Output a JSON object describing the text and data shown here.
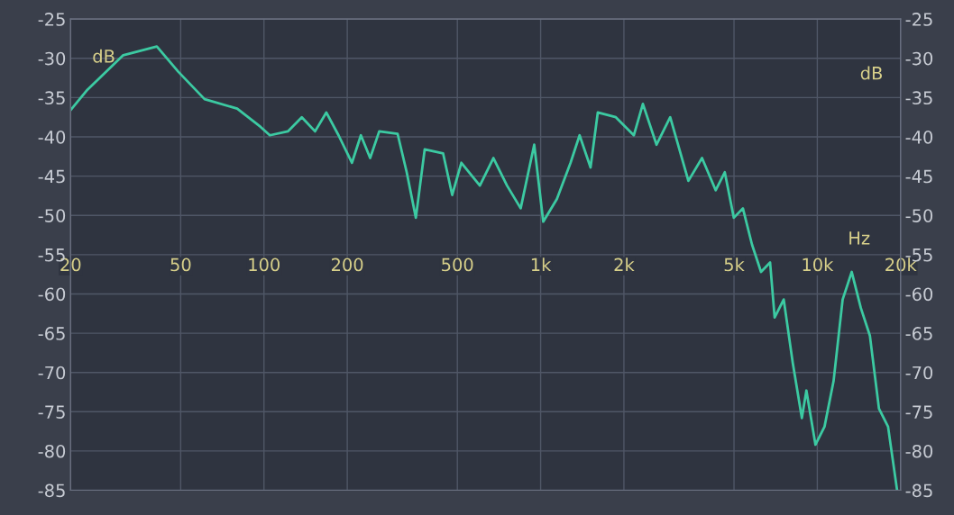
{
  "chart_data": {
    "type": "line",
    "xlabel": "Hz",
    "ylabel": "dB",
    "y2label": "dB",
    "log": "x",
    "grid": true,
    "marker": "none",
    "line_style": "solid",
    "xlim": [
      20,
      20000
    ],
    "xticks": [
      {
        "value": 20,
        "label": "20"
      },
      {
        "value": 50,
        "label": "50"
      },
      {
        "value": 100,
        "label": "100"
      },
      {
        "value": 200,
        "label": "200"
      },
      {
        "value": 500,
        "label": "500"
      },
      {
        "value": 1000,
        "label": "1k"
      },
      {
        "value": 2000,
        "label": "2k"
      },
      {
        "value": 5000,
        "label": "5k"
      },
      {
        "value": 10000,
        "label": "10k"
      },
      {
        "value": 20000,
        "label": "20k"
      }
    ],
    "ylim": [
      -85,
      -25
    ],
    "yticks": [
      -85,
      -80,
      -75,
      -70,
      -65,
      -60,
      -55,
      -50,
      -45,
      -40,
      -35,
      -30,
      -25
    ],
    "y2lim": [
      -85,
      -25
    ],
    "y2ticks": [
      -85,
      -80,
      -75,
      -70,
      -65,
      -60,
      -55,
      -50,
      -45,
      -40,
      -35,
      -30,
      -25
    ],
    "series": [
      {
        "color": "#3ccaa2",
        "x": [
          20,
          23,
          31,
          41,
          49,
          61,
          80,
          97,
          105,
          122,
          137,
          153,
          168,
          186,
          208,
          224,
          242,
          261,
          304,
          328,
          354,
          381,
          444,
          479,
          517,
          603,
          675,
          756,
          847,
          948,
          1022,
          1145,
          1283,
          1383,
          1515,
          1609,
          1870,
          2172,
          2342,
          2624,
          2940,
          3420,
          3831,
          4292,
          4630,
          4992,
          5384,
          5806,
          6261,
          6752,
          7012,
          7562,
          8155,
          8795,
          9133,
          9850,
          10620,
          11450,
          12350,
          13320,
          14370,
          15490,
          16710,
          18020,
          19430
        ],
        "values": [
          -36.6,
          -34,
          -29.6,
          -28.5,
          -31.7,
          -35.2,
          -36.4,
          -38.7,
          -39.8,
          -39.3,
          -37.5,
          -39.3,
          -36.9,
          -39.8,
          -43.3,
          -39.8,
          -42.7,
          -39.3,
          -39.6,
          -44.5,
          -50.3,
          -41.6,
          -42.1,
          -47.4,
          -43.3,
          -46.2,
          -42.7,
          -46.2,
          -49.1,
          -41,
          -50.8,
          -47.9,
          -43.3,
          -39.8,
          -43.9,
          -36.9,
          -37.5,
          -39.8,
          -35.8,
          -41,
          -37.5,
          -45.6,
          -42.7,
          -46.8,
          -44.5,
          -50.3,
          -49.1,
          -53.7,
          -57.2,
          -56,
          -63,
          -60.7,
          -68.8,
          -75.8,
          -72.3,
          -79.2,
          -76.9,
          -71.1,
          -60.7,
          -57.2,
          -61.8,
          -65.3,
          -74.6,
          -76.9,
          -85
        ]
      }
    ]
  }
}
